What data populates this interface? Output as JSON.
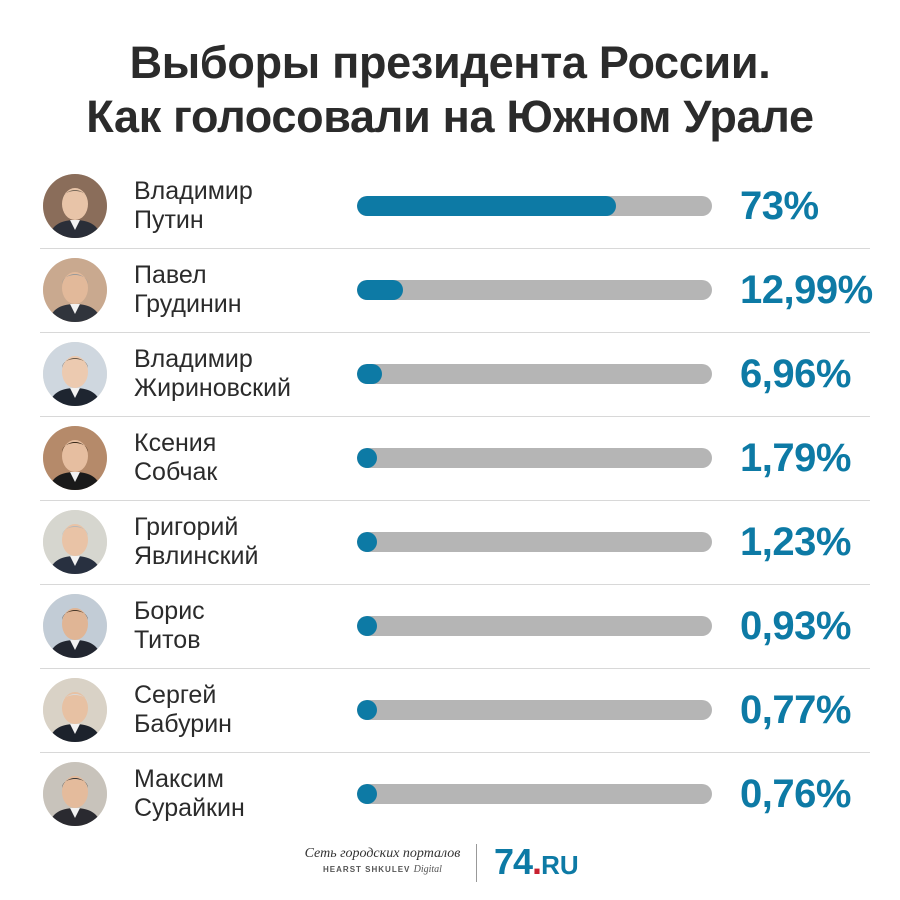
{
  "title": {
    "line1": "Выборы президента России.",
    "line2": "Как голосовали на Южном Урале"
  },
  "chart_data": {
    "type": "bar",
    "orientation": "horizontal",
    "xlim": [
      0,
      100
    ],
    "categories": [
      "Владимир Путин",
      "Павел Грудинин",
      "Владимир Жириновский",
      "Ксения Собчак",
      "Григорий Явлинский",
      "Борис Титов",
      "Сергей Бабурин",
      "Максим Сурайкин"
    ],
    "values": [
      73,
      12.99,
      6.96,
      1.79,
      1.23,
      0.93,
      0.77,
      0.76
    ],
    "colors": {
      "fill": "#0d7aa5",
      "track": "#b5b5b5"
    }
  },
  "rows": [
    {
      "first": "Владимир",
      "last": "Путин",
      "value": 73,
      "label": "73%"
    },
    {
      "first": "Павел",
      "last": "Грудинин",
      "value": 12.99,
      "label": "12,99%"
    },
    {
      "first": "Владимир",
      "last": "Жириновский",
      "value": 6.96,
      "label": "6,96%"
    },
    {
      "first": "Ксения",
      "last": "Собчак",
      "value": 1.79,
      "label": "1,79%"
    },
    {
      "first": "Григорий",
      "last": "Явлинский",
      "value": 1.23,
      "label": "1,23%"
    },
    {
      "first": "Борис",
      "last": "Титов",
      "value": 0.93,
      "label": "0,93%"
    },
    {
      "first": "Сергей",
      "last": "Бабурин",
      "value": 0.77,
      "label": "0,77%"
    },
    {
      "first": "Максим",
      "last": "Сурайкин",
      "value": 0.76,
      "label": "0,76%"
    }
  ],
  "footer": {
    "network_line1": "Сеть городских порталов",
    "network_line2": "HEARST SHKULEV",
    "network_line2_suffix": "Digital",
    "logo_number": "74",
    "logo_dot": ".",
    "logo_domain": "RU"
  }
}
